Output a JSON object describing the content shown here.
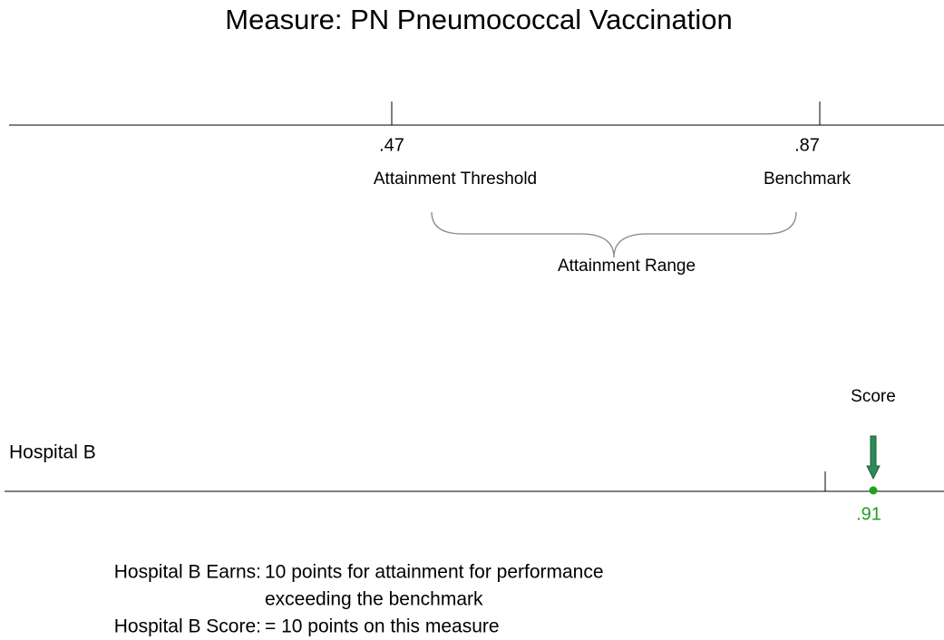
{
  "title": "Measure: PN Pneumococcal Vaccination",
  "scale": {
    "threshold": {
      "value": ".47",
      "label": "Attainment Threshold"
    },
    "benchmark": {
      "value": ".87",
      "label": "Benchmark"
    },
    "range_label": "Attainment Range"
  },
  "hospital": {
    "name": "Hospital B",
    "score_label": "Score",
    "score": ".91"
  },
  "summary": [
    {
      "label": "Hospital B Earns:",
      "lines": [
        "10 points for attainment for performance",
        "exceeding the benchmark"
      ]
    },
    {
      "label": "Hospital B Score:",
      "lines": [
        "= 10 points on this measure"
      ]
    }
  ]
}
